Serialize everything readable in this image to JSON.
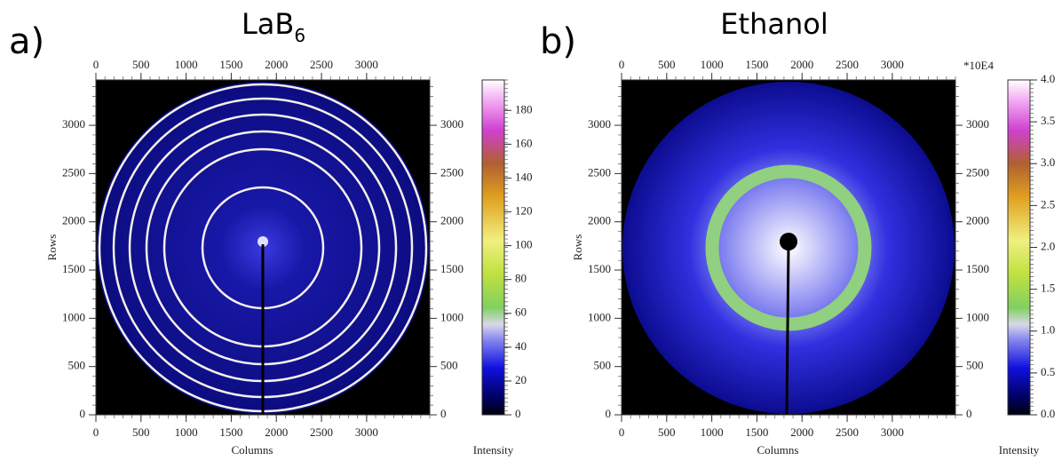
{
  "panels": [
    {
      "label": "a)",
      "title": "LaB",
      "title_sub": "6",
      "x_label": "Columns",
      "y_label": "Rows",
      "xlim": [
        0,
        3700
      ],
      "ylim": [
        0,
        3470
      ],
      "xticks": [
        0,
        500,
        1000,
        1500,
        2000,
        2500,
        3000
      ],
      "yticks": [
        0,
        500,
        1000,
        1500,
        2000,
        2500,
        3000
      ],
      "colorbar": {
        "label": "Intensity",
        "lim": [
          0,
          198
        ],
        "ticks": [
          0,
          20,
          40,
          60,
          80,
          100,
          120,
          140,
          160,
          180
        ]
      }
    },
    {
      "label": "b)",
      "title": "Ethanol",
      "x_label": "Columns",
      "y_label": "Rows",
      "xlim": [
        0,
        3700
      ],
      "ylim": [
        0,
        3470
      ],
      "xticks": [
        0,
        500,
        1000,
        1500,
        2000,
        2500,
        3000
      ],
      "yticks": [
        0,
        500,
        1000,
        1500,
        2000,
        2500,
        3000
      ],
      "colorbar": {
        "label": "Intensity",
        "multiplier": "*10E4",
        "lim": [
          0,
          4.0
        ],
        "ticks": [
          {
            "value": 0,
            "label": "0.0"
          },
          {
            "value": 0.5,
            "label": "0.5"
          },
          {
            "value": 1,
            "label": "1.0"
          },
          {
            "value": 1.5,
            "label": "1.5"
          },
          {
            "value": 2,
            "label": "2.0"
          },
          {
            "value": 2.5,
            "label": "2.5"
          },
          {
            "value": 3,
            "label": "3.0"
          },
          {
            "value": 3.5,
            "label": "3.5"
          },
          {
            "value": 4,
            "label": "4.0"
          }
        ]
      }
    }
  ]
}
